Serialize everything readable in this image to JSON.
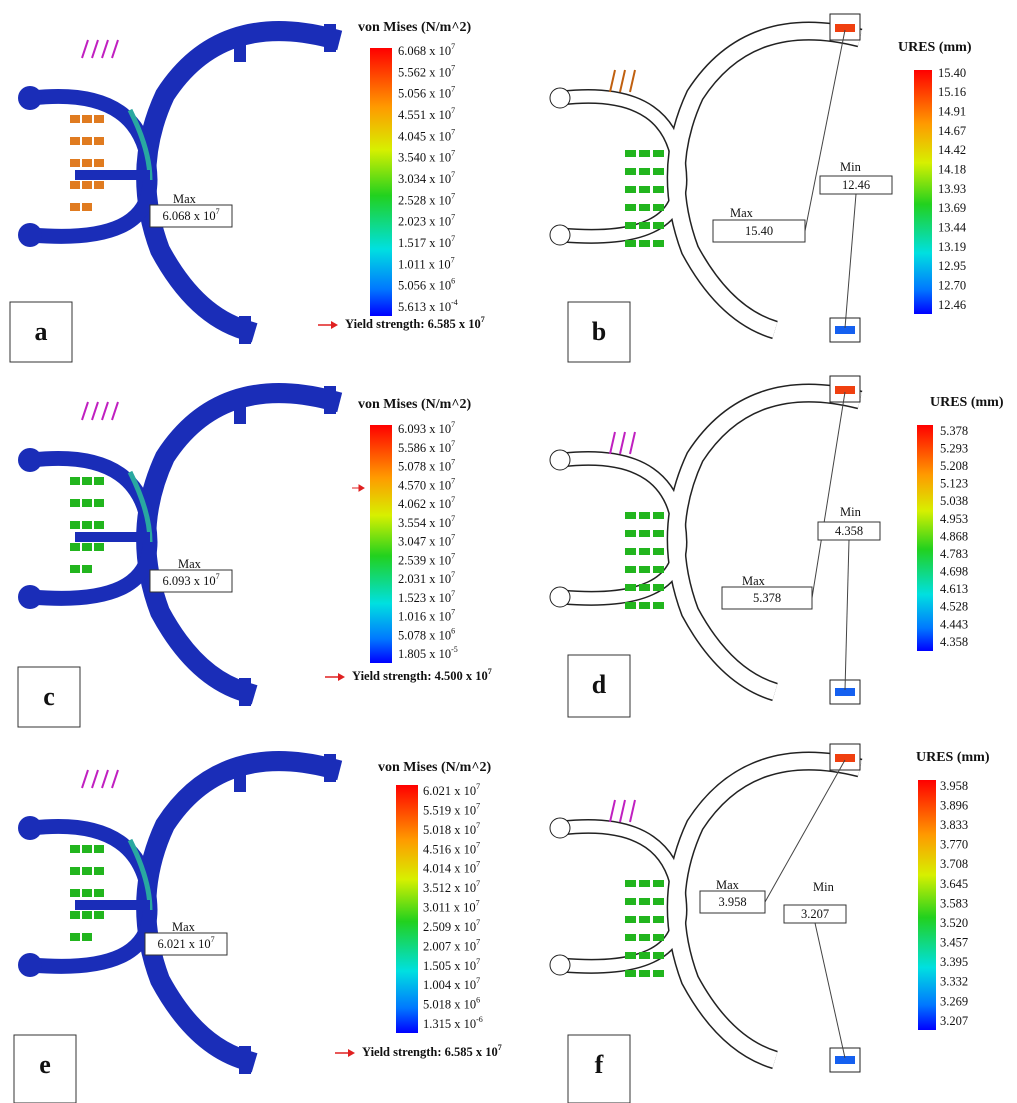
{
  "panels": [
    {
      "label": "a",
      "legend": {
        "title": "von Mises (N/m^2)",
        "ticks": [
          {
            "base": "6.068 x 10",
            "exp": "7"
          },
          {
            "base": "5.562 x 10",
            "exp": "7"
          },
          {
            "base": "5.056 x 10",
            "exp": "7"
          },
          {
            "base": "4.551 x 10",
            "exp": "7"
          },
          {
            "base": "4.045 x 10",
            "exp": "7"
          },
          {
            "base": "3.540 x 10",
            "exp": "7"
          },
          {
            "base": "3.034 x 10",
            "exp": "7"
          },
          {
            "base": "2.528 x 10",
            "exp": "7"
          },
          {
            "base": "2.023 x 10",
            "exp": "7"
          },
          {
            "base": "1.517 x 10",
            "exp": "7"
          },
          {
            "base": "1.011 x 10",
            "exp": "7"
          },
          {
            "base": "5.056 x 10",
            "exp": "6"
          },
          {
            "base": "5.613 x 10",
            "exp": "-4"
          }
        ]
      },
      "max": {
        "label": "Max",
        "value": {
          "base": "6.068 x 10",
          "exp": "7"
        }
      },
      "yield": {
        "base": "Yield strength: 6.585 x 10",
        "exp": "7"
      }
    },
    {
      "label": "b",
      "legend": {
        "title": "URES (mm)",
        "ticks": [
          "15.40",
          "15.16",
          "14.91",
          "14.67",
          "14.42",
          "14.18",
          "13.93",
          "13.69",
          "13.44",
          "13.19",
          "12.95",
          "12.70",
          "12.46"
        ]
      },
      "max": {
        "label": "Max",
        "value": "15.40"
      },
      "min": {
        "label": "Min",
        "value": "12.46"
      }
    },
    {
      "label": "c",
      "legend": {
        "title": "von Mises (N/m^2)",
        "ticks": [
          {
            "base": "6.093 x 10",
            "exp": "7"
          },
          {
            "base": "5.586 x 10",
            "exp": "7"
          },
          {
            "base": "5.078 x 10",
            "exp": "7"
          },
          {
            "base": "4.570 x 10",
            "exp": "7"
          },
          {
            "base": "4.062 x 10",
            "exp": "7"
          },
          {
            "base": "3.554 x 10",
            "exp": "7"
          },
          {
            "base": "3.047 x 10",
            "exp": "7"
          },
          {
            "base": "2.539 x 10",
            "exp": "7"
          },
          {
            "base": "2.031 x 10",
            "exp": "7"
          },
          {
            "base": "1.523 x 10",
            "exp": "7"
          },
          {
            "base": "1.016 x 10",
            "exp": "7"
          },
          {
            "base": "5.078 x 10",
            "exp": "6"
          },
          {
            "base": "1.805 x 10",
            "exp": "-5"
          }
        ]
      },
      "max": {
        "label": "Max",
        "value": {
          "base": "6.093 x 10",
          "exp": "7"
        }
      },
      "yield": {
        "base": "Yield strength: 4.500 x 10",
        "exp": "7"
      }
    },
    {
      "label": "d",
      "legend": {
        "title": "URES (mm)",
        "ticks": [
          "5.378",
          "5.293",
          "5.208",
          "5.123",
          "5.038",
          "4.953",
          "4.868",
          "4.783",
          "4.698",
          "4.613",
          "4.528",
          "4.443",
          "4.358"
        ]
      },
      "max": {
        "label": "Max",
        "value": "5.378"
      },
      "min": {
        "label": "Min",
        "value": "4.358"
      }
    },
    {
      "label": "e",
      "legend": {
        "title": "von Mises (N/m^2)",
        "ticks": [
          {
            "base": "6.021 x 10",
            "exp": "7"
          },
          {
            "base": "5.519 x 10",
            "exp": "7"
          },
          {
            "base": "5.018 x 10",
            "exp": "7"
          },
          {
            "base": "4.516 x 10",
            "exp": "7"
          },
          {
            "base": "4.014 x 10",
            "exp": "7"
          },
          {
            "base": "3.512 x 10",
            "exp": "7"
          },
          {
            "base": "3.011 x 10",
            "exp": "7"
          },
          {
            "base": "2.509 x 10",
            "exp": "7"
          },
          {
            "base": "2.007 x 10",
            "exp": "7"
          },
          {
            "base": "1.505 x 10",
            "exp": "7"
          },
          {
            "base": "1.004 x 10",
            "exp": "7"
          },
          {
            "base": "5.018 x 10",
            "exp": "6"
          },
          {
            "base": "1.315 x 10",
            "exp": "-6"
          }
        ]
      },
      "max": {
        "label": "Max",
        "value": {
          "base": "6.021 x 10",
          "exp": "7"
        }
      },
      "yield": {
        "base": "Yield strength: 6.585 x 10",
        "exp": "7"
      }
    },
    {
      "label": "f",
      "legend": {
        "title": "URES (mm)",
        "ticks": [
          "3.958",
          "3.896",
          "3.833",
          "3.770",
          "3.708",
          "3.645",
          "3.583",
          "3.520",
          "3.457",
          "3.395",
          "3.332",
          "3.269",
          "3.207"
        ]
      },
      "max": {
        "label": "Max",
        "value": "3.958"
      },
      "min": {
        "label": "Min",
        "value": "3.207"
      }
    }
  ]
}
